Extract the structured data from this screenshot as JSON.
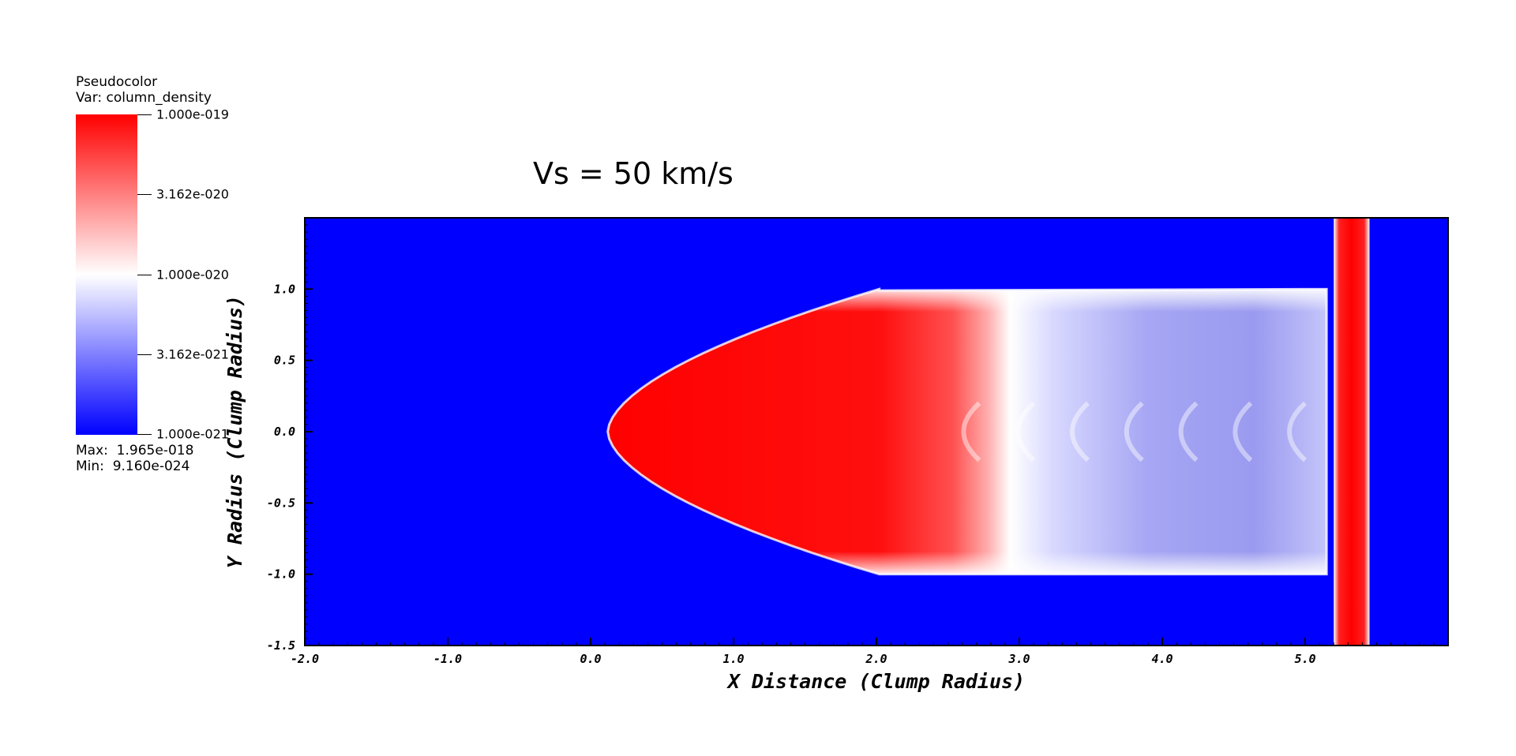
{
  "legend": {
    "plot_type": "Pseudocolor",
    "variable": "Var: column_density",
    "tick_labels": [
      "1.000e-019",
      "3.162e-020",
      "1.000e-020",
      "3.162e-021",
      "1.000e-021"
    ],
    "max_text": "Max:  1.965e-018",
    "min_text": "Min:  9.160e-024",
    "colors": {
      "high": "#ff0000",
      "mid": "#ffffff",
      "low": "#0000ff"
    }
  },
  "chart_data": {
    "type": "heatmap",
    "title": "Vs = 50 km/s",
    "xlabel": "X Distance (Clump Radius)",
    "ylabel": "Y Radius (Clump Radius)",
    "xlim": [
      -2.0,
      6.0
    ],
    "ylim": [
      -1.5,
      1.5
    ],
    "x_ticks": [
      "-2.0",
      "-1.0",
      "0.0",
      "1.0",
      "2.0",
      "3.0",
      "4.0",
      "5.0"
    ],
    "x_tick_values": [
      -2,
      -1,
      0,
      1,
      2,
      3,
      4,
      5
    ],
    "y_ticks": [
      "1.0",
      "0.5",
      "0.0",
      "-0.5",
      "-1.0",
      "-1.5"
    ],
    "y_tick_values": [
      1.0,
      0.5,
      0.0,
      -0.5,
      -1.0,
      -1.5
    ],
    "colorscale": "log",
    "color_range": [
      1e-21,
      1e-19
    ],
    "background_level": "1.000e-021",
    "structures": {
      "clump_head_x": 0.12,
      "clump_half_width": 1.0,
      "tail_end_x": 5.15,
      "shock_front_x": [
        5.2,
        5.45
      ]
    }
  }
}
